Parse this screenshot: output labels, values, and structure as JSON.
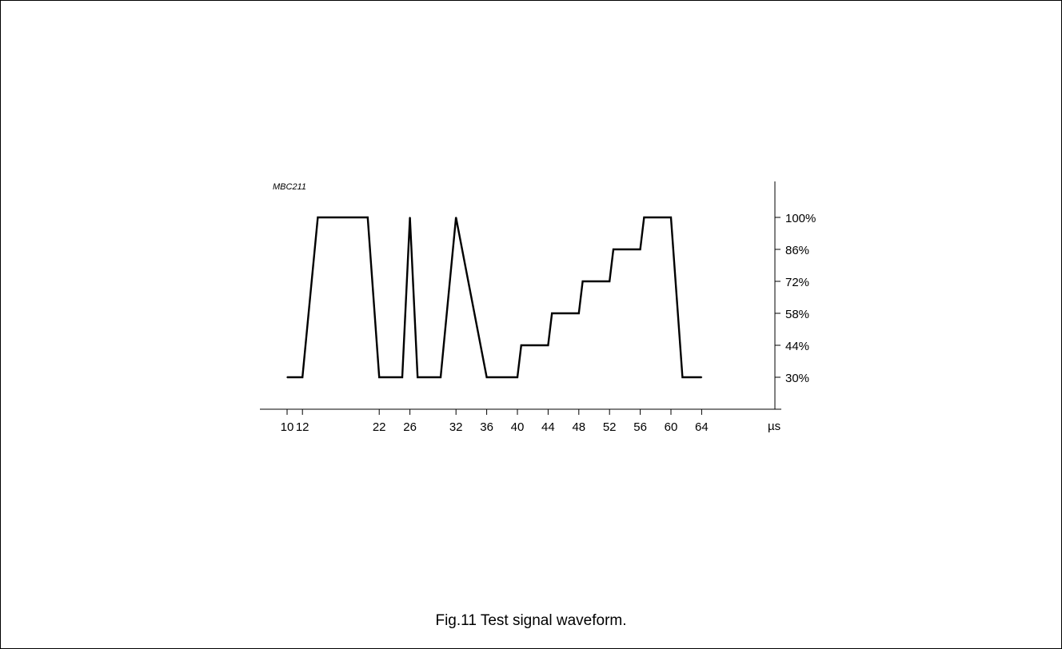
{
  "figure": {
    "code": "MBC211",
    "caption": "Fig.11  Test signal waveform."
  },
  "chart_data": {
    "type": "line",
    "xlabel": "µs",
    "ylabel": "",
    "x_ticks": [
      "10",
      "12",
      "22",
      "26",
      "32",
      "36",
      "40",
      "44",
      "48",
      "52",
      "56",
      "60",
      "64"
    ],
    "y_ticks": [
      "100%",
      "86%",
      "72%",
      "58%",
      "44%",
      "30%"
    ],
    "series": [
      {
        "x": [
          10,
          12,
          14,
          20.5,
          22,
          25,
          26,
          27,
          30,
          32,
          36,
          40,
          40.5,
          44,
          44.5,
          48,
          48.5,
          52,
          52.5,
          56,
          56.5,
          60,
          61.5,
          64
        ],
        "y": [
          30,
          30,
          100,
          100,
          30,
          30,
          100,
          30,
          30,
          100,
          30,
          30,
          44,
          44,
          58,
          58,
          72,
          72,
          86,
          86,
          100,
          100,
          30,
          30
        ]
      }
    ]
  }
}
